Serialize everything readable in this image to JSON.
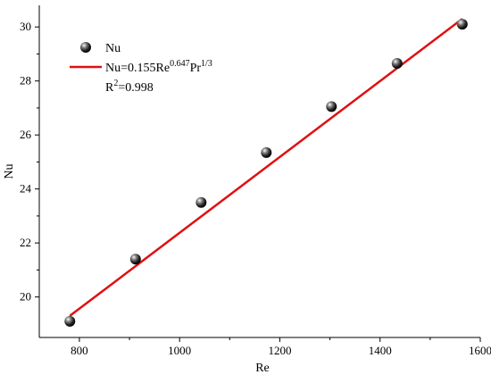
{
  "chart_data": {
    "type": "scatter",
    "xlabel": "Re",
    "ylabel": "Nu",
    "xlim": [
      720,
      1600
    ],
    "ylim": [
      18.5,
      30.8
    ],
    "xticks": [
      800,
      1000,
      1200,
      1400,
      1600
    ],
    "yticks": [
      20,
      22,
      24,
      26,
      28,
      30
    ],
    "x_tick_labels": [
      "800",
      "1000",
      "1200",
      "1400",
      "1600"
    ],
    "y_tick_labels": [
      "20",
      "22",
      "24",
      "26",
      "28",
      "30"
    ],
    "series": [
      {
        "name": "Nu",
        "kind": "scatter",
        "color": "#111111",
        "x": [
          781,
          912,
          1043,
          1173,
          1303,
          1434,
          1564
        ],
        "y": [
          19.1,
          21.4,
          23.5,
          25.35,
          27.05,
          28.65,
          30.1
        ]
      },
      {
        "kind": "line",
        "color": "#e01010",
        "x": [
          781,
          1564
        ],
        "y": [
          19.3,
          30.3
        ]
      }
    ],
    "legend": {
      "position": "top-left",
      "marker_label": "Nu",
      "fit_label_base": "Nu=0.155Re",
      "fit_label_exp1": "0.647",
      "fit_label_mid": "Pr",
      "fit_label_exp2": "1/3",
      "r2_base": "R",
      "r2_exp": "2",
      "r2_value": "=0.998"
    },
    "grid": false
  }
}
